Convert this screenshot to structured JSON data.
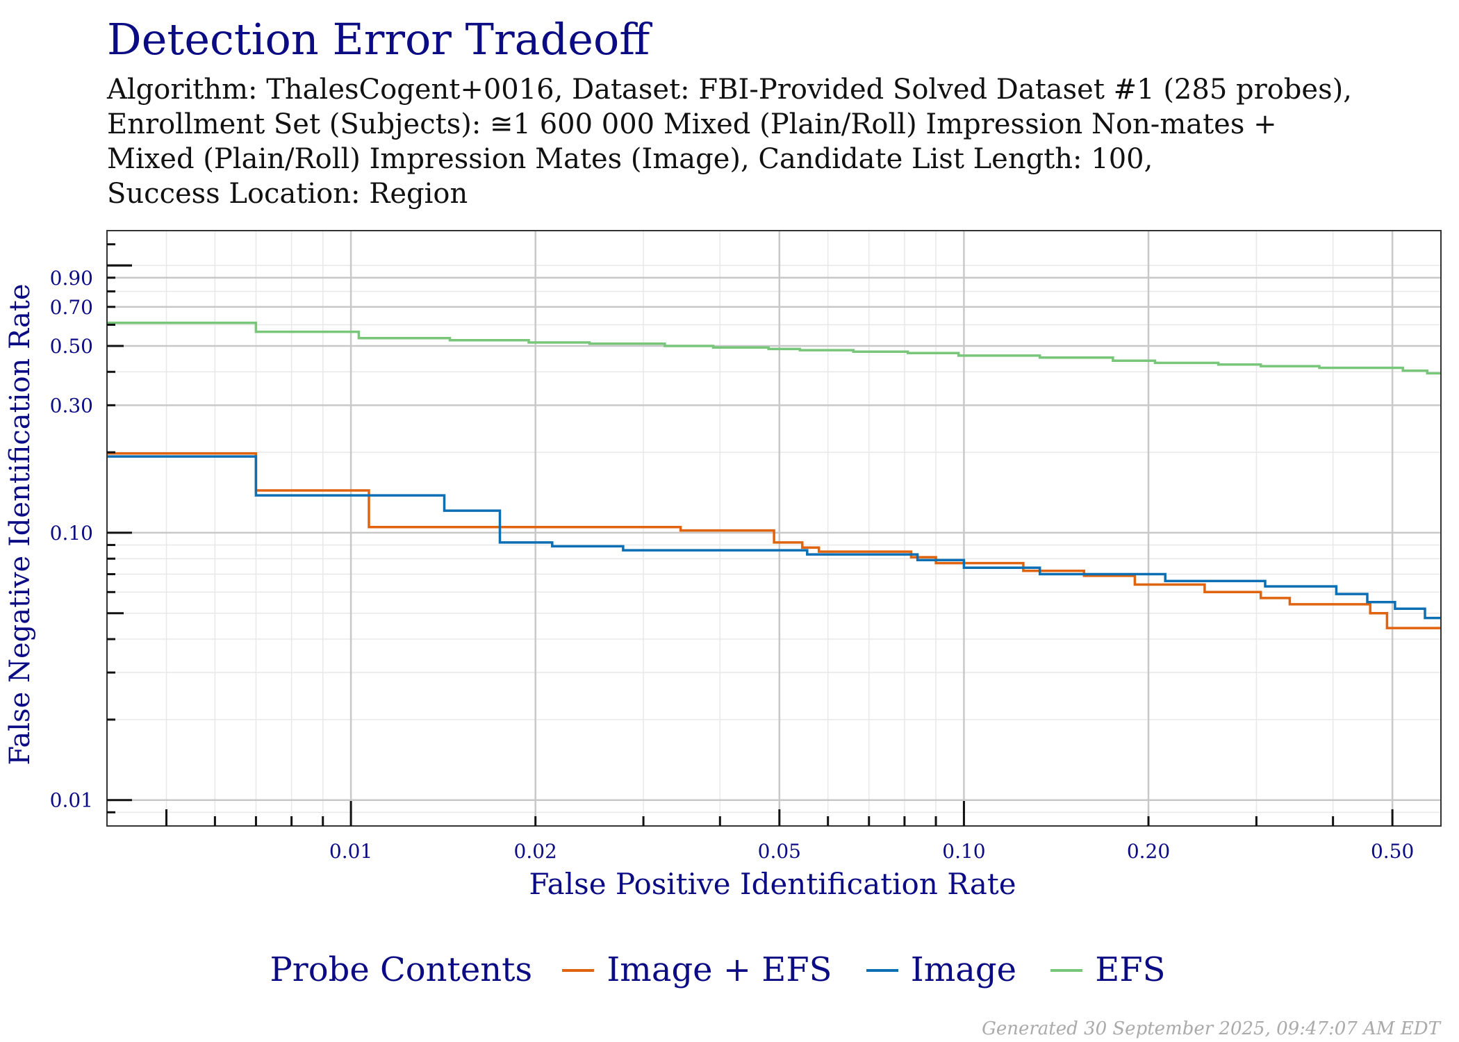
{
  "chart_data": {
    "type": "line",
    "title": "Detection Error Tradeoff",
    "subtitle_lines": [
      "Algorithm: ThalesCogent+0016, Dataset: FBI-Provided Solved Dataset #1 (285 probes),",
      "Enrollment Set (Subjects): ≅1 600 000 Mixed (Plain/Roll) Impression Non-mates +",
      "Mixed (Plain/Roll) Impression Mates (Image), Candidate List Length: 100,",
      "Success Location: Region"
    ],
    "xlabel": "False Positive Identification Rate",
    "ylabel": "False Negative Identification Rate",
    "xscale": "log",
    "yscale": "log",
    "xlim": [
      0.004,
      0.6
    ],
    "ylim": [
      0.008,
      1.35
    ],
    "xticks": [
      0.01,
      0.02,
      0.05,
      0.1,
      0.2,
      0.5
    ],
    "xtick_labels": [
      "0.01",
      "0.02",
      "0.05",
      "0.10",
      "0.20",
      "0.50"
    ],
    "yticks": [
      0.01,
      0.1,
      0.3,
      0.5,
      0.7,
      0.9
    ],
    "ytick_labels": [
      "0.01",
      "0.10",
      "0.30",
      "0.50",
      "0.70",
      "0.90"
    ],
    "grid": true,
    "legend_title": "Probe Contents",
    "legend_position": "bottom",
    "series": [
      {
        "name": "Image + EFS",
        "color": "#e0640f",
        "x": [
          0.004,
          0.007,
          0.0107,
          0.0345,
          0.049,
          0.0545,
          0.058,
          0.082,
          0.09,
          0.125,
          0.157,
          0.19,
          0.247,
          0.305,
          0.34,
          0.46,
          0.49,
          0.6
        ],
        "y": [
          0.198,
          0.144,
          0.105,
          0.102,
          0.092,
          0.088,
          0.085,
          0.081,
          0.077,
          0.072,
          0.069,
          0.064,
          0.06,
          0.057,
          0.054,
          0.05,
          0.044,
          0.044
        ]
      },
      {
        "name": "Image",
        "color": "#0c6fb3",
        "x": [
          0.004,
          0.007,
          0.0142,
          0.0175,
          0.0213,
          0.0278,
          0.0555,
          0.084,
          0.1,
          0.133,
          0.213,
          0.31,
          0.405,
          0.455,
          0.505,
          0.565,
          0.6
        ],
        "y": [
          0.193,
          0.138,
          0.121,
          0.092,
          0.089,
          0.086,
          0.083,
          0.079,
          0.074,
          0.07,
          0.066,
          0.063,
          0.059,
          0.055,
          0.052,
          0.048,
          0.048
        ]
      },
      {
        "name": "EFS",
        "color": "#78c679",
        "x": [
          0.004,
          0.007,
          0.0103,
          0.0145,
          0.0195,
          0.0245,
          0.0325,
          0.039,
          0.048,
          0.054,
          0.066,
          0.081,
          0.098,
          0.133,
          0.175,
          0.205,
          0.26,
          0.305,
          0.38,
          0.52,
          0.57,
          0.6
        ],
        "y": [
          0.61,
          0.565,
          0.535,
          0.525,
          0.515,
          0.51,
          0.5,
          0.493,
          0.487,
          0.482,
          0.476,
          0.47,
          0.46,
          0.452,
          0.44,
          0.432,
          0.426,
          0.42,
          0.414,
          0.404,
          0.395,
          0.395
        ]
      }
    ]
  },
  "footer": {
    "generated": "Generated 30 September 2025, 09:47:07 AM EDT"
  }
}
